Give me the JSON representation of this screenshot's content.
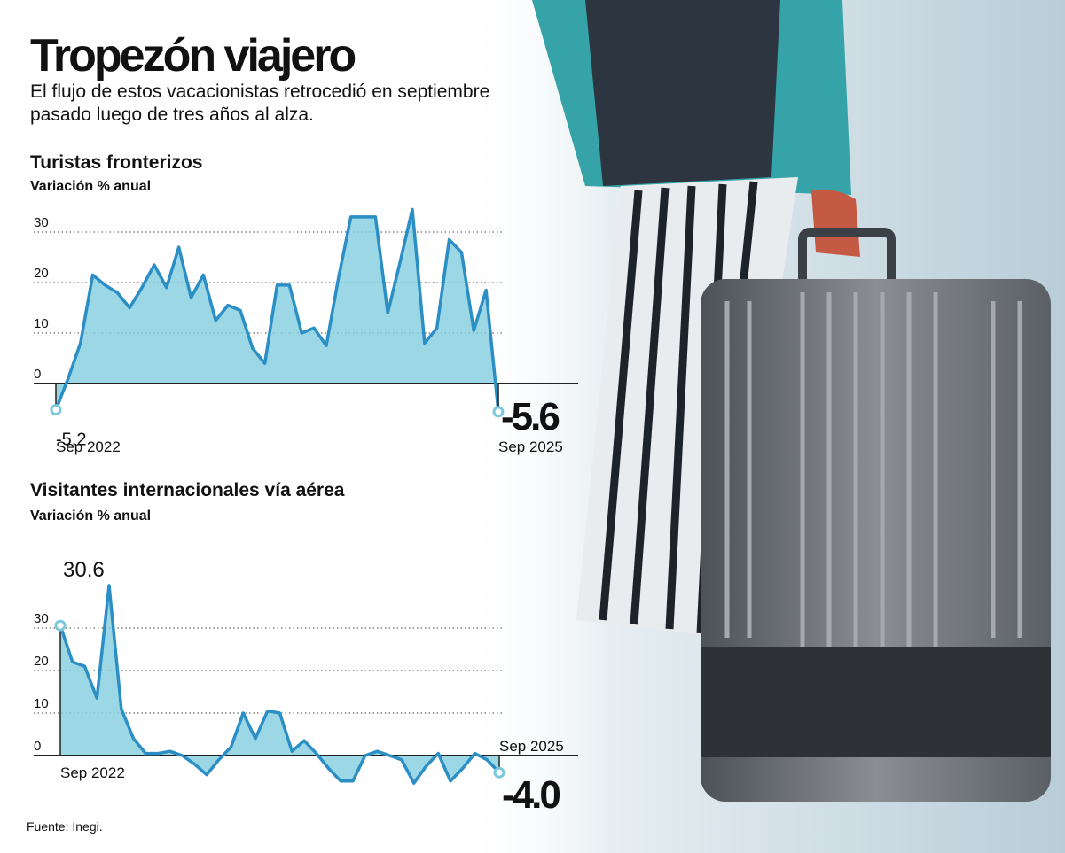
{
  "header": {
    "title": "Tropezón viajero",
    "subtitle": [
      "El flujo de estos vacacionistas retrocedió en septiembre",
      "pasado luego de tres años al alza."
    ]
  },
  "chart_data": [
    {
      "type": "area",
      "title": "Turistas fronterizos",
      "y_label": "Variación % anual",
      "color": "#2b8fc6",
      "fill": "#83cde0",
      "categories": [
        "Sep 2022",
        null,
        null,
        null,
        null,
        null,
        null,
        null,
        null,
        null,
        null,
        null,
        null,
        null,
        null,
        null,
        null,
        null,
        null,
        null,
        null,
        null,
        null,
        null,
        null,
        null,
        null,
        null,
        null,
        null,
        null,
        null,
        null,
        null,
        null,
        null,
        "Sep 2025"
      ],
      "values": [
        -5.2,
        1,
        8,
        21.5,
        19.5,
        18,
        15,
        19,
        23.5,
        19,
        27,
        17,
        21.5,
        12.5,
        15.5,
        14.5,
        7,
        4,
        19.5,
        19.5,
        10,
        11,
        7.5,
        21,
        33,
        33,
        33,
        14,
        24,
        34.5,
        8,
        11,
        28.5,
        26,
        10.5,
        18.5,
        -5.6
      ],
      "value_labels": [
        "-5.2",
        null,
        null,
        null,
        null,
        null,
        null,
        null,
        null,
        null,
        null,
        null,
        null,
        null,
        null,
        null,
        null,
        null,
        null,
        null,
        null,
        null,
        null,
        null,
        null,
        null,
        null,
        null,
        null,
        null,
        null,
        null,
        null,
        null,
        null,
        null,
        "-5.6"
      ],
      "ylim": [
        -7,
        36
      ],
      "yticks": [
        0,
        10,
        20,
        30
      ],
      "grid": true
    },
    {
      "type": "area",
      "title": "Visitantes internacionales vía aérea",
      "y_label": "Variación % anual",
      "color": "#2b8fc6",
      "fill": "#83cde0",
      "categories": [
        "Sep 2022",
        null,
        null,
        null,
        null,
        null,
        null,
        null,
        null,
        null,
        null,
        null,
        null,
        null,
        null,
        null,
        null,
        null,
        null,
        null,
        null,
        null,
        null,
        null,
        null,
        null,
        null,
        null,
        null,
        null,
        null,
        null,
        null,
        null,
        null,
        null,
        "Sep 2025"
      ],
      "values": [
        30.6,
        22,
        21,
        13.5,
        40,
        11,
        4,
        0.5,
        0.5,
        1,
        0,
        -2,
        -4.5,
        -1,
        2,
        10,
        4,
        10.5,
        10,
        1,
        3.5,
        0.5,
        -3,
        -6,
        -6,
        0,
        1,
        0,
        -1,
        -6.5,
        -2.5,
        0.5,
        -6,
        -3,
        0.5,
        -1,
        -4.0
      ],
      "value_labels": [
        "30.6",
        null,
        null,
        null,
        null,
        null,
        null,
        null,
        null,
        null,
        null,
        null,
        null,
        null,
        null,
        null,
        null,
        null,
        null,
        null,
        null,
        null,
        null,
        null,
        null,
        null,
        null,
        null,
        null,
        null,
        null,
        null,
        null,
        null,
        null,
        null,
        "-4.0"
      ],
      "ylim": [
        -8,
        42
      ],
      "yticks": [
        0,
        10,
        20,
        30
      ],
      "grid": true
    }
  ],
  "source": "Fuente: Inegi."
}
